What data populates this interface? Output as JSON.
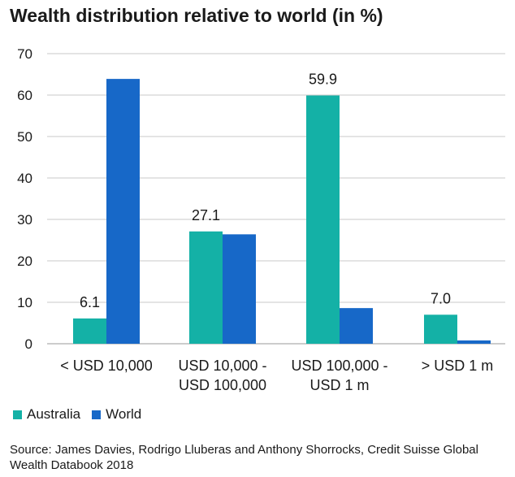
{
  "title": "Wealth distribution relative to world (in %)",
  "source": "Source: James Davies, Rodrigo Lluberas and Anthony Shorrocks, Credit Suisse Global Wealth Databook 2018",
  "colors": {
    "australia": "#14b1a6",
    "world": "#1768c8",
    "grid": "#c8c8c8"
  },
  "chart_data": {
    "type": "bar",
    "title": "Wealth distribution relative to world (in %)",
    "categories": [
      [
        "< USD 10,000"
      ],
      [
        "USD 10,000 -",
        "USD 100,000"
      ],
      [
        "USD 100,000 -",
        "USD 1 m"
      ],
      [
        "> USD 1 m"
      ]
    ],
    "series": [
      {
        "name": "Australia",
        "values": [
          6.1,
          27.1,
          59.9,
          7.0
        ],
        "labels": [
          "6.1",
          "27.1",
          "59.9",
          "7.0"
        ]
      },
      {
        "name": "World",
        "values": [
          63.9,
          26.4,
          8.6,
          0.8
        ]
      }
    ],
    "yticks": [
      0,
      10,
      20,
      30,
      40,
      50,
      60,
      70
    ],
    "ylim": [
      0,
      70
    ],
    "xlabel": "",
    "ylabel": "",
    "grid": true,
    "legend": "bottom-left"
  }
}
